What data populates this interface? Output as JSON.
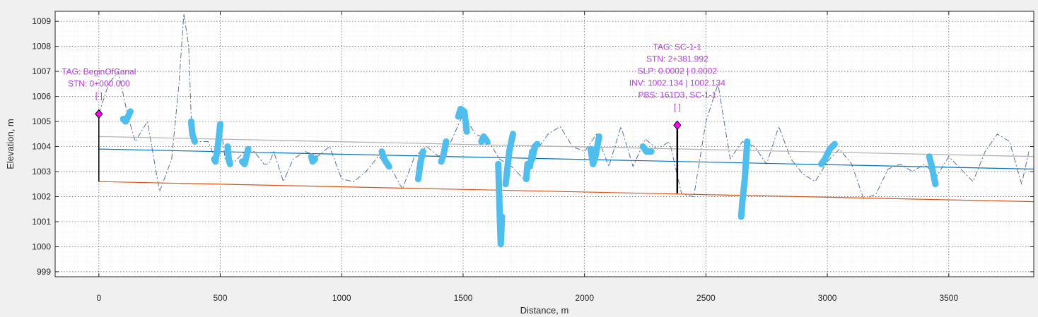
{
  "chart_data": {
    "type": "line",
    "title": "",
    "xlabel": "Distance, m",
    "ylabel": "Elevation, m",
    "xlim": [
      -180,
      3850
    ],
    "ylim": [
      998.8,
      1009.4
    ],
    "xticks": [
      0,
      500,
      1000,
      1500,
      2000,
      2500,
      3000,
      3500
    ],
    "yticks": [
      999,
      1000,
      1001,
      1002,
      1003,
      1004,
      1005,
      1006,
      1007,
      1008,
      1009
    ],
    "grid": true,
    "minor_grid": true,
    "colors": {
      "ground": "#5a6e96",
      "gray_line": "#b4b4b4",
      "blue_line": "#0072bd",
      "orange_line": "#d95319",
      "cyan_segments": "#4dbeee",
      "marker_fill": "#ff00ff",
      "annotation_text": "#b040e0"
    },
    "series": [
      {
        "style": "dash-dot",
        "x": [
          0,
          40,
          80,
          120,
          150,
          200,
          250,
          300,
          330,
          350,
          370,
          380,
          400,
          450,
          480,
          500,
          520,
          560,
          600,
          640,
          680,
          700,
          720,
          760,
          800,
          850,
          900,
          950,
          1000,
          1050,
          1100,
          1150,
          1200,
          1250,
          1300,
          1350,
          1400,
          1450,
          1500,
          1550,
          1600,
          1650,
          1700,
          1750,
          1800,
          1850,
          1900,
          1950,
          2000,
          2050,
          2100,
          2150,
          2200,
          2250,
          2300,
          2350,
          2400,
          2450,
          2500,
          2550,
          2600,
          2650,
          2700,
          2750,
          2800,
          2850,
          2900,
          2950,
          3000,
          3050,
          3100,
          3150,
          3200,
          3250,
          3300,
          3350,
          3400,
          3450,
          3500,
          3550,
          3600,
          3650,
          3700,
          3750,
          3800,
          3830
        ],
        "y": [
          1005.3,
          1006.5,
          1007.0,
          1005.2,
          1004.2,
          1005.0,
          1002.2,
          1003.5,
          1006.5,
          1009.3,
          1008.0,
          1005.2,
          1004.2,
          1004.2,
          1003.5,
          1005.0,
          1003.5,
          1003.4,
          1003.8,
          1003.8,
          1003.3,
          1003.3,
          1003.8,
          1002.6,
          1003.5,
          1003.8,
          1003.6,
          1004.0,
          1002.7,
          1002.6,
          1003.0,
          1003.6,
          1003.2,
          1002.3,
          1003.6,
          1004.0,
          1003.6,
          1004.2,
          1005.3,
          1004.5,
          1004.3,
          1003.5,
          1003.2,
          1002.7,
          1003.8,
          1004.5,
          1004.8,
          1004.0,
          1003.8,
          1004.5,
          1003.2,
          1004.8,
          1003.2,
          1004.3,
          1003.9,
          1004.2,
          1002.1,
          1002.0,
          1005.0,
          1006.5,
          1003.5,
          1004.2,
          1004.0,
          1003.3,
          1004.8,
          1003.5,
          1002.9,
          1002.6,
          1003.4,
          1003.9,
          1003.3,
          1001.9,
          1002.1,
          1003.1,
          1003.3,
          1003.0,
          1003.3,
          1002.8,
          1003.6,
          1003.1,
          1002.6,
          1003.8,
          1004.5,
          1004.2,
          1002.5,
          1003.8
        ]
      },
      {
        "style": "solid",
        "x": [
          0,
          3850
        ],
        "y": [
          1004.4,
          1003.6
        ]
      },
      {
        "style": "solid",
        "x": [
          0,
          3850
        ],
        "y": [
          1003.9,
          1003.1
        ]
      },
      {
        "style": "solid",
        "x": [
          0,
          3850
        ],
        "y": [
          1002.6,
          1001.8
        ]
      }
    ],
    "thick_segments": [
      {
        "x": [
          100,
          110,
          130
        ],
        "y": [
          1005.1,
          1005.0,
          1005.4
        ]
      },
      {
        "x": [
          380,
          385,
          395
        ],
        "y": [
          1005.0,
          1004.5,
          1004.2
        ]
      },
      {
        "x": [
          475,
          480,
          490,
          500
        ],
        "y": [
          1003.5,
          1003.4,
          1004.0,
          1004.9
        ]
      },
      {
        "x": [
          530,
          535,
          540
        ],
        "y": [
          1004.0,
          1003.5,
          1003.3
        ]
      },
      {
        "x": [
          590,
          600,
          615
        ],
        "y": [
          1003.4,
          1003.3,
          1003.9
        ]
      },
      {
        "x": [
          875,
          880,
          890
        ],
        "y": [
          1003.6,
          1003.4,
          1003.5
        ]
      },
      {
        "x": [
          1165,
          1175,
          1195
        ],
        "y": [
          1003.8,
          1003.5,
          1003.2
        ]
      },
      {
        "x": [
          1315,
          1325,
          1335
        ],
        "y": [
          1002.7,
          1003.4,
          1003.8
        ]
      },
      {
        "x": [
          1410,
          1420,
          1430
        ],
        "y": [
          1003.4,
          1003.7,
          1004.2
        ]
      },
      {
        "x": [
          1480,
          1490,
          1505,
          1515
        ],
        "y": [
          1005.2,
          1005.5,
          1005.4,
          1004.6
        ]
      },
      {
        "x": [
          1575,
          1585,
          1600
        ],
        "y": [
          1004.2,
          1004.4,
          1004.2
        ]
      },
      {
        "x": [
          1645,
          1650,
          1655,
          1660
        ],
        "y": [
          1003.3,
          1001.5,
          1000.1,
          1001.2
        ]
      },
      {
        "x": [
          1675,
          1690,
          1705
        ],
        "y": [
          1002.5,
          1003.8,
          1004.5
        ]
      },
      {
        "x": [
          1760,
          1765,
          1775,
          1785
        ],
        "y": [
          1002.7,
          1003.3,
          1003.2,
          1003.8
        ]
      },
      {
        "x": [
          1785,
          1795,
          1805
        ],
        "y": [
          1003.5,
          1004.0,
          1004.1
        ]
      },
      {
        "x": [
          2025,
          2035,
          2045,
          2060
        ],
        "y": [
          1003.9,
          1003.3,
          1003.6,
          1004.4
        ]
      },
      {
        "x": [
          2240,
          2255,
          2275
        ],
        "y": [
          1004.0,
          1003.8,
          1003.8
        ]
      },
      {
        "x": [
          2645,
          2650,
          2660,
          2670
        ],
        "y": [
          1001.2,
          1001.8,
          1002.7,
          1004.2
        ]
      },
      {
        "x": [
          2975,
          2990,
          3010,
          3030
        ],
        "y": [
          1003.3,
          1003.5,
          1003.9,
          1004.1
        ]
      },
      {
        "x": [
          3420,
          3430,
          3445
        ],
        "y": [
          1003.6,
          1003.2,
          1002.5
        ]
      }
    ],
    "markers": [
      {
        "x": 0,
        "y": 1005.3,
        "base_y": 1002.6,
        "labels": [
          "TAG: BeginOfCanal",
          "STN: 0+000.000",
          "[ ]"
        ]
      },
      {
        "x": 2381.992,
        "y": 1004.85,
        "base_y": 1002.13,
        "labels": [
          "TAG: SC-1-1",
          "STN: 2+381.992",
          "SLP: 0.0002 | 0.0002",
          "INV: 1002.134 | 1002.134",
          "PBS: 161D3, SC-1-1",
          "[ ]"
        ]
      }
    ]
  }
}
